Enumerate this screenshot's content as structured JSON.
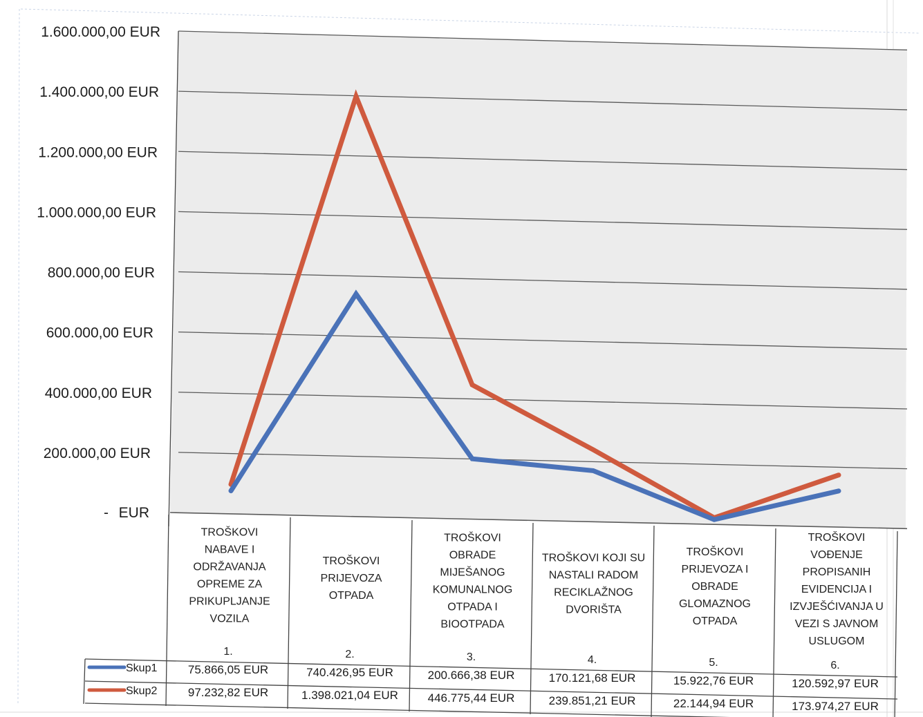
{
  "colors": {
    "skup1": "#4a72b8",
    "skup2": "#cf5a3e",
    "plot_bg": "#ececec",
    "grid": "#5a5a5a",
    "border": "#444444"
  },
  "chart_data": {
    "type": "line",
    "title": "",
    "xlabel": "",
    "ylabel": "",
    "ylim": [
      0,
      1600000
    ],
    "y_ticks": [
      "1.600.000,00 EUR",
      "1.400.000,00 EUR",
      "1.200.000,00 EUR",
      "1.000.000,00 EUR",
      "800.000,00 EUR",
      "600.000,00 EUR",
      "400.000,00 EUR",
      "200.000,00 EUR",
      "-",
      "EUR"
    ],
    "grid": true,
    "categories": [
      {
        "lines": [
          "TROŠKOVI",
          "NABAVE I",
          "ODRŽAVANJA",
          "OPREME ZA",
          "PRIKUPLJANJE",
          "VOZILA"
        ],
        "number": "1."
      },
      {
        "lines": [
          "TROŠKOVI",
          "PRIJEVOZA",
          "OTPADA"
        ],
        "number": "2."
      },
      {
        "lines": [
          "TROŠKOVI",
          "OBRADE",
          "MIJEŠANOG",
          "KOMUNALNOG",
          "OTPADA I",
          "BIOOTPADA"
        ],
        "number": "3."
      },
      {
        "lines": [
          "TROŠKOVI KOJI SU",
          "NASTALI RADOM",
          "RECIKLAŽNOG",
          "DVORIŠTA"
        ],
        "number": "4."
      },
      {
        "lines": [
          "TROŠKOVI",
          "PRIJEVOZA I",
          "OBRADE",
          "GLOMAZNOG",
          "OTPADA"
        ],
        "number": "5."
      },
      {
        "lines": [
          "TROŠKOVI",
          "VOĐENJE",
          "PROPISANIH",
          "EVIDENCIJA I",
          "IZVJEŠĆIVANJA U",
          "VEZI S JAVNOM",
          "USLUGOM"
        ],
        "number": "6."
      }
    ],
    "series": [
      {
        "name": "Skup1",
        "values": [
          75866.05,
          740426.95,
          200666.38,
          170121.68,
          15922.76,
          120592.97
        ],
        "labels": [
          "75.866,05 EUR",
          "740.426,95 EUR",
          "200.666,38 EUR",
          "170.121,68 EUR",
          "15.922,76 EUR",
          "120.592,97 EUR"
        ]
      },
      {
        "name": "Skup2",
        "values": [
          97232.82,
          1398021.04,
          446775.44,
          239851.21,
          22144.94,
          173974.27
        ],
        "labels": [
          "97.232,82 EUR",
          "1.398.021,04 EUR",
          "446.775,44 EUR",
          "239.851,21 EUR",
          "22.144,94 EUR",
          "173.974,27 EUR"
        ]
      }
    ],
    "legend": "data-table"
  }
}
